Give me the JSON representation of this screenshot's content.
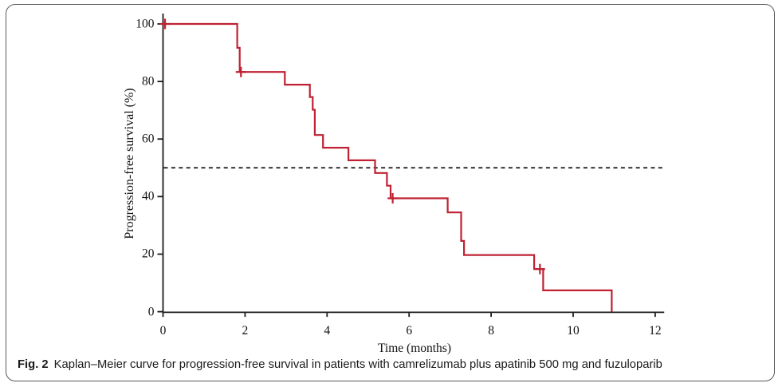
{
  "figure": {
    "caption_label": "Fig. 2",
    "caption_text": "Kaplan–Meier curve for progression-free survival in patients with camrelizumab plus apatinib 500 mg and fuzuloparib"
  },
  "chart_data": {
    "type": "line",
    "subtype": "kaplan_meier_step",
    "title": "",
    "xlabel": "Time (months)",
    "ylabel": "Progression-free survival (%)",
    "xlim": [
      0,
      12.25
    ],
    "ylim": [
      0,
      100
    ],
    "x_ticks": [
      0,
      2,
      4,
      6,
      8,
      10,
      12
    ],
    "y_ticks": [
      0,
      20,
      40,
      60,
      80,
      100
    ],
    "grid": false,
    "legend": "none",
    "reference_line": {
      "y": 50,
      "style": "dashed",
      "color": "#000000",
      "meaning": "median survival threshold"
    },
    "series": [
      {
        "name": "camrelizumab plus apatinib 500 mg and fuzuloparib",
        "color": "#bf2133",
        "steps": [
          [
            0,
            100
          ],
          [
            1.81,
            100
          ],
          [
            1.81,
            91.7
          ],
          [
            1.87,
            91.7
          ],
          [
            1.87,
            83.3
          ],
          [
            2.97,
            83.3
          ],
          [
            2.97,
            78.9
          ],
          [
            3.58,
            78.9
          ],
          [
            3.58,
            74.6
          ],
          [
            3.65,
            74.6
          ],
          [
            3.65,
            70.2
          ],
          [
            3.7,
            70.2
          ],
          [
            3.7,
            61.4
          ],
          [
            3.9,
            61.4
          ],
          [
            3.9,
            57.0
          ],
          [
            4.52,
            57.0
          ],
          [
            4.52,
            52.6
          ],
          [
            5.17,
            52.6
          ],
          [
            5.17,
            48.2
          ],
          [
            5.46,
            48.2
          ],
          [
            5.46,
            43.8
          ],
          [
            5.55,
            43.8
          ],
          [
            5.55,
            39.4
          ],
          [
            6.94,
            39.4
          ],
          [
            6.94,
            34.5
          ],
          [
            7.27,
            34.5
          ],
          [
            7.27,
            24.6
          ],
          [
            7.34,
            24.6
          ],
          [
            7.34,
            19.7
          ],
          [
            9.05,
            19.7
          ],
          [
            9.05,
            14.8
          ],
          [
            9.27,
            14.8
          ],
          [
            9.27,
            7.4
          ],
          [
            10.94,
            7.4
          ],
          [
            10.94,
            0
          ]
        ],
        "censor_marks": [
          [
            0.05,
            100
          ],
          [
            1.9,
            83.3
          ],
          [
            5.6,
            39.4
          ],
          [
            9.19,
            14.8
          ]
        ]
      }
    ]
  },
  "colors": {
    "curve": "#bf2133",
    "axis": "#1a1a1a",
    "frame_border": "#58595b",
    "reference_dash": "#000000",
    "background": "#ffffff"
  }
}
